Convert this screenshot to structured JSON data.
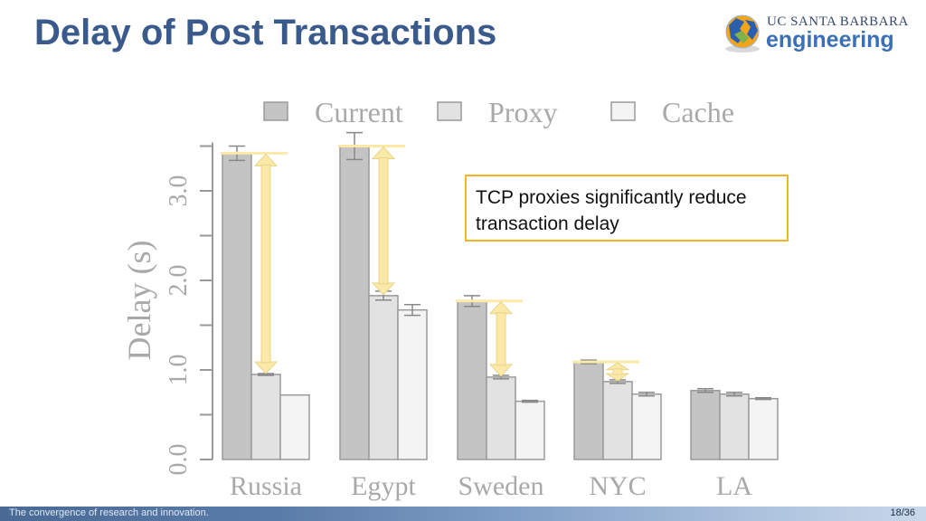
{
  "slide": {
    "title": "Delay of Post Transactions",
    "logo_line1": "UC SANTA BARBARA",
    "logo_line2": "engineering",
    "callout": "TCP proxies significantly reduce transaction delay",
    "footer_text": "The convergence of research and innovation.",
    "page_number": "18/36"
  },
  "chart_data": {
    "type": "bar",
    "categories": [
      "Russia",
      "Egypt",
      "Sweden",
      "NYC",
      "LA"
    ],
    "series": [
      {
        "name": "Current",
        "values": [
          3.42,
          3.5,
          1.77,
          1.09,
          0.77
        ],
        "err": [
          0.08,
          0.15,
          0.06,
          0.02,
          0.02
        ],
        "color": "#c4c4c4"
      },
      {
        "name": "Proxy",
        "values": [
          0.95,
          1.83,
          0.92,
          0.87,
          0.73
        ],
        "err": [
          0.01,
          0.05,
          0.02,
          0.02,
          0.02
        ],
        "color": "#e2e2e2"
      },
      {
        "name": "Cache",
        "values": [
          0.72,
          1.67,
          0.65,
          0.73,
          0.68
        ],
        "err": [
          0.0,
          0.06,
          0.01,
          0.02,
          0.01
        ],
        "color": "#f4f4f4"
      }
    ],
    "ylabel": "Delay (s)",
    "ytick_labels": [
      "0.0",
      "1.0",
      "2.0",
      "3.0"
    ],
    "yticks": [
      0,
      0.5,
      1.0,
      1.5,
      2.0,
      2.5,
      3.0,
      3.5
    ],
    "ylim": [
      0,
      3.5
    ],
    "legend_position": "top",
    "annotations": [
      {
        "category": "Russia",
        "from": 3.42,
        "to": 0.95
      },
      {
        "category": "Egypt",
        "from": 3.5,
        "to": 1.83
      },
      {
        "category": "Sweden",
        "from": 1.77,
        "to": 0.92
      },
      {
        "category": "NYC",
        "from": 1.09,
        "to": 0.87
      }
    ],
    "annotation_color": "#fbe9a8"
  }
}
